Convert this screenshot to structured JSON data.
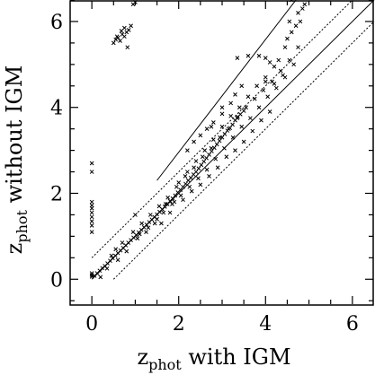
{
  "chart_data": {
    "type": "scatter",
    "title": "",
    "xlabel": {
      "main": "z",
      "sub": "phot",
      "rest": " with IGM"
    },
    "ylabel": {
      "main": "z",
      "sub": "phot",
      "rest": " without IGM"
    },
    "xlim": [
      -0.5,
      6.5
    ],
    "ylim": [
      -0.6,
      6.5
    ],
    "x_ticks": [
      0,
      2,
      4,
      6
    ],
    "y_ticks": [
      0,
      2,
      4,
      6
    ],
    "x_tick_labels": [
      "0",
      "2",
      "4",
      "6"
    ],
    "y_tick_labels": [
      "0",
      "2",
      "4",
      "6"
    ],
    "grid": false,
    "marker": "x",
    "reference_lines": [
      {
        "style": "solid",
        "x": [
          0.0,
          6.5
        ],
        "y": [
          0.0,
          6.5
        ]
      },
      {
        "style": "dotted",
        "x": [
          0.0,
          6.5
        ],
        "y": [
          0.5,
          7.0
        ]
      },
      {
        "style": "dotted",
        "x": [
          0.5,
          6.5
        ],
        "y": [
          0.0,
          6.0
        ]
      },
      {
        "style": "solid",
        "x": [
          1.5,
          4.7
        ],
        "y": [
          2.3,
          6.5
        ]
      }
    ],
    "series": [
      {
        "points": [
          [
            0,
            0.06
          ],
          [
            0,
            0.1
          ],
          [
            0,
            0.14
          ],
          [
            0,
            1.1
          ],
          [
            0,
            1.25
          ],
          [
            0,
            1.35
          ],
          [
            0,
            1.45
          ],
          [
            0,
            1.55
          ],
          [
            0,
            1.65
          ],
          [
            0,
            1.72
          ],
          [
            0,
            1.8
          ],
          [
            0,
            2.5
          ],
          [
            0,
            2.7
          ],
          [
            0.06,
            0.08
          ],
          [
            0.12,
            0.14
          ],
          [
            0.18,
            0.2
          ],
          [
            0.24,
            0.26
          ],
          [
            0.3,
            0.31
          ],
          [
            0.36,
            0.37
          ],
          [
            0.42,
            0.43
          ],
          [
            0.48,
            0.49
          ],
          [
            0.54,
            0.55
          ],
          [
            0.6,
            0.61
          ],
          [
            0.66,
            0.67
          ],
          [
            0.72,
            0.73
          ],
          [
            0.78,
            0.79
          ],
          [
            0.84,
            0.85
          ],
          [
            0.9,
            0.91
          ],
          [
            0.96,
            0.97
          ],
          [
            1.02,
            1.03
          ],
          [
            1.08,
            1.09
          ],
          [
            1.14,
            1.15
          ],
          [
            1.2,
            1.21
          ],
          [
            1.26,
            1.27
          ],
          [
            1.32,
            1.33
          ],
          [
            1.38,
            1.39
          ],
          [
            1.44,
            1.45
          ],
          [
            1.5,
            1.51
          ],
          [
            1.56,
            1.57
          ],
          [
            1.62,
            1.63
          ],
          [
            1.68,
            1.69
          ],
          [
            1.74,
            1.75
          ],
          [
            1.8,
            1.82
          ],
          [
            1.86,
            1.88
          ],
          [
            1.92,
            1.95
          ],
          [
            1.98,
            2.02
          ],
          [
            2.04,
            2.08
          ],
          [
            2.1,
            2.15
          ],
          [
            2.16,
            2.22
          ],
          [
            2.22,
            2.3
          ],
          [
            2.28,
            2.36
          ],
          [
            2.34,
            2.44
          ],
          [
            2.4,
            2.5
          ],
          [
            2.46,
            2.58
          ],
          [
            2.52,
            2.66
          ],
          [
            2.58,
            2.74
          ],
          [
            2.64,
            2.82
          ],
          [
            2.7,
            2.9
          ],
          [
            2.76,
            2.98
          ],
          [
            2.82,
            3.06
          ],
          [
            2.88,
            3.14
          ],
          [
            2.94,
            3.22
          ],
          [
            3.0,
            3.3
          ],
          [
            3.06,
            3.38
          ],
          [
            3.12,
            3.46
          ],
          [
            3.18,
            3.52
          ],
          [
            3.24,
            3.6
          ],
          [
            3.3,
            3.7
          ],
          [
            3.36,
            3.78
          ],
          [
            3.42,
            3.84
          ],
          [
            3.5,
            3.92
          ],
          [
            0.2,
            0.05
          ],
          [
            0.35,
            0.25
          ],
          [
            0.45,
            0.55
          ],
          [
            0.55,
            0.7
          ],
          [
            0.6,
            0.45
          ],
          [
            0.7,
            0.85
          ],
          [
            0.8,
            0.65
          ],
          [
            0.95,
            1.1
          ],
          [
            1.05,
            0.95
          ],
          [
            1.15,
            1.3
          ],
          [
            1.25,
            1.1
          ],
          [
            1.35,
            1.5
          ],
          [
            1.45,
            1.3
          ],
          [
            1.55,
            1.7
          ],
          [
            1.65,
            1.55
          ],
          [
            1.75,
            1.9
          ],
          [
            1.85,
            1.75
          ],
          [
            1.95,
            2.15
          ],
          [
            2.05,
            1.95
          ],
          [
            2.15,
            2.4
          ],
          [
            2.25,
            2.15
          ],
          [
            2.35,
            2.6
          ],
          [
            2.45,
            2.35
          ],
          [
            2.55,
            2.85
          ],
          [
            2.65,
            2.55
          ],
          [
            2.75,
            3.05
          ],
          [
            2.85,
            2.8
          ],
          [
            2.95,
            3.3
          ],
          [
            3.05,
            3.05
          ],
          [
            3.15,
            3.5
          ],
          [
            3.25,
            3.3
          ],
          [
            3.35,
            3.75
          ],
          [
            3.45,
            3.55
          ],
          [
            3.55,
            4.0
          ],
          [
            3.65,
            3.75
          ],
          [
            3.75,
            4.2
          ],
          [
            3.85,
            4.0
          ],
          [
            3.95,
            4.4
          ],
          [
            4.05,
            4.25
          ],
          [
            4.15,
            4.6
          ],
          [
            4.25,
            4.45
          ],
          [
            4.35,
            4.85
          ],
          [
            4.45,
            4.7
          ],
          [
            4.55,
            5.1
          ],
          [
            4.65,
            5.0
          ],
          [
            4.75,
            5.4
          ],
          [
            1.0,
            1.5
          ],
          [
            1.1,
            1.05
          ],
          [
            1.3,
            1.2
          ],
          [
            1.5,
            1.4
          ],
          [
            1.7,
            1.75
          ],
          [
            1.6,
            1.3
          ],
          [
            1.8,
            1.55
          ],
          [
            1.9,
            1.8
          ],
          [
            2.0,
            2.25
          ],
          [
            2.1,
            1.85
          ],
          [
            2.2,
            2.5
          ],
          [
            2.3,
            2.05
          ],
          [
            2.4,
            2.75
          ],
          [
            2.5,
            2.2
          ],
          [
            2.6,
            3.0
          ],
          [
            2.7,
            2.4
          ],
          [
            2.8,
            3.25
          ],
          [
            2.9,
            2.6
          ],
          [
            3.0,
            3.55
          ],
          [
            3.1,
            2.85
          ],
          [
            3.2,
            3.8
          ],
          [
            3.3,
            3.0
          ],
          [
            3.4,
            4.0
          ],
          [
            3.5,
            3.2
          ],
          [
            3.6,
            4.25
          ],
          [
            3.7,
            3.45
          ],
          [
            3.8,
            4.5
          ],
          [
            3.9,
            3.7
          ],
          [
            4.0,
            4.7
          ],
          [
            4.1,
            3.9
          ],
          [
            2.2,
            3.0
          ],
          [
            2.35,
            3.2
          ],
          [
            2.5,
            3.35
          ],
          [
            2.65,
            3.5
          ],
          [
            2.8,
            3.65
          ],
          [
            3.0,
            3.85
          ],
          [
            3.2,
            4.1
          ],
          [
            3.3,
            4.3
          ],
          [
            3.45,
            4.5
          ],
          [
            3.6,
            5.2
          ],
          [
            3.35,
            5.15
          ],
          [
            3.85,
            5.2
          ],
          [
            4.0,
            5.15
          ],
          [
            4.1,
            5.05
          ],
          [
            4.3,
            5.1
          ],
          [
            4.2,
            4.95
          ],
          [
            4.5,
            5.6
          ],
          [
            4.6,
            5.75
          ],
          [
            4.7,
            5.9
          ],
          [
            4.8,
            6.0
          ],
          [
            4.55,
            6.0
          ],
          [
            4.75,
            6.2
          ],
          [
            4.85,
            6.3
          ],
          [
            4.9,
            6.4
          ],
          [
            4.6,
            6.5
          ],
          [
            4.45,
            5.4
          ],
          [
            4.0,
            4.6
          ],
          [
            4.2,
            4.55
          ],
          [
            4.4,
            4.75
          ],
          [
            3.0,
            4.0
          ],
          [
            2.75,
            3.55
          ],
          [
            0.5,
            5.5
          ],
          [
            0.55,
            5.58
          ],
          [
            0.6,
            5.62
          ],
          [
            0.65,
            5.55
          ],
          [
            0.7,
            5.7
          ],
          [
            0.75,
            5.65
          ],
          [
            0.8,
            5.75
          ],
          [
            0.85,
            5.8
          ],
          [
            0.9,
            5.9
          ],
          [
            0.75,
            5.85
          ],
          [
            0.82,
            5.4
          ],
          [
            0.95,
            6.4
          ],
          [
            1.0,
            6.45
          ],
          [
            0.58,
            5.65
          ],
          [
            0.68,
            5.78
          ]
        ]
      }
    ]
  }
}
